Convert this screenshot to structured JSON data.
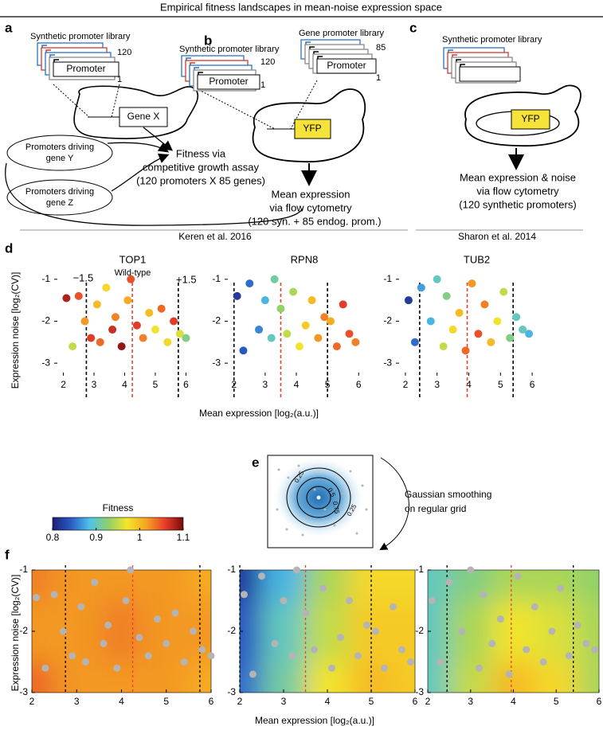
{
  "title": "Empirical fitness landscapes in mean-noise expression space",
  "panel_a": {
    "label": "a",
    "library": "Synthetic promoter library",
    "count_top": "120",
    "count_bottom": "1",
    "promoter": "Promoter",
    "gene": "Gene X",
    "driving_y": [
      "Promoters driving",
      "gene Y"
    ],
    "driving_z": [
      "Promoters driving",
      "gene Z"
    ],
    "result": [
      "Fitness via",
      "competitive growth assay",
      "(120 promoters X 85 genes)"
    ]
  },
  "panel_b": {
    "label": "b",
    "library": "Synthetic promoter library",
    "count_top": "120",
    "count_bottom": "1",
    "gene_library": "Gene promoter library",
    "gene_count_top": "85",
    "gene_count_bottom": "1",
    "promoter": "Promoter",
    "reporter": "YFP",
    "result": [
      "Mean expression",
      "via flow cytometry",
      "(120 syn. + 85 endog. prom.)"
    ]
  },
  "panel_c": {
    "label": "c",
    "library": "Synthetic promoter library",
    "reporter": "YFP",
    "result": [
      "Mean expression & noise",
      "via flow cytometry",
      "(120 synthetic promoters)"
    ]
  },
  "citations": [
    "Keren et al. 2016",
    "Sharon et al. 2014"
  ],
  "panel_d": {
    "label": "d",
    "y_label": "Expression noise [log₂(CV)]",
    "x_label": "Mean expression [log₂(a.u.)]",
    "xlim": [
      1.7,
      6.3
    ],
    "ylim": [
      -3.3,
      -0.7
    ],
    "xticks": [
      2,
      3,
      4,
      5,
      6
    ],
    "yticks": [
      -1,
      -2,
      -3
    ],
    "plots": [
      {
        "title": "TOP1",
        "subtitle": "Wild-type",
        "left_label": "−1.5",
        "right_label": "+1.5",
        "lines": [
          {
            "x": 2.75,
            "color": "#000000"
          },
          {
            "x": 4.25,
            "color": "#e8402a"
          },
          {
            "x": 5.75,
            "color": "#000000"
          }
        ],
        "points": {
          "x": [
            2.1,
            2.3,
            2.5,
            2.7,
            2.9,
            3.1,
            3.2,
            3.4,
            3.6,
            3.7,
            3.9,
            4.1,
            4.2,
            4.4,
            4.6,
            4.8,
            5.0,
            5.2,
            5.4,
            5.6,
            5.8,
            6.0
          ],
          "y": [
            -1.45,
            -2.6,
            -1.4,
            -2.0,
            -2.4,
            -1.6,
            -2.5,
            -1.2,
            -2.2,
            -1.9,
            -2.6,
            -1.5,
            -1.0,
            -2.1,
            -2.4,
            -1.8,
            -2.2,
            -1.7,
            -2.5,
            -2.0,
            -2.3,
            -2.4
          ],
          "fitness": [
            1.08,
            0.95,
            1.05,
            1.02,
            1.06,
            1.0,
            1.04,
            0.98,
            1.07,
            1.03,
            1.09,
            1.01,
            1.05,
            1.06,
            1.03,
            1.0,
            0.97,
            1.04,
            0.98,
            1.06,
            0.96,
            0.92
          ]
        }
      },
      {
        "title": "RPN8",
        "lines": [
          {
            "x": 2,
            "color": "#000000"
          },
          {
            "x": 3.5,
            "color": "#e8402a"
          },
          {
            "x": 5,
            "color": "#000000"
          }
        ],
        "points": {
          "x": [
            2.1,
            2.3,
            2.5,
            2.8,
            3.0,
            3.2,
            3.3,
            3.5,
            3.7,
            3.9,
            4.1,
            4.3,
            4.5,
            4.7,
            4.9,
            5.1,
            5.3,
            5.5,
            5.7,
            5.9
          ],
          "y": [
            -1.4,
            -2.7,
            -1.1,
            -2.2,
            -1.5,
            -2.4,
            -1.0,
            -1.7,
            -2.3,
            -1.3,
            -2.6,
            -2.1,
            -1.5,
            -2.4,
            -1.9,
            -2.0,
            -2.6,
            -1.6,
            -2.3,
            -2.5
          ],
          "fitness": [
            0.82,
            0.84,
            0.85,
            0.86,
            0.88,
            0.9,
            0.91,
            0.93,
            0.95,
            0.94,
            0.97,
            0.99,
            1.0,
            1.02,
            1.03,
            1.01,
            1.04,
            1.06,
            1.05,
            1.03
          ]
        }
      },
      {
        "title": "TUB2",
        "lines": [
          {
            "x": 2.45,
            "color": "#000000"
          },
          {
            "x": 3.95,
            "color": "#e8402a"
          },
          {
            "x": 5.4,
            "color": "#000000"
          }
        ],
        "points": {
          "x": [
            2.1,
            2.3,
            2.5,
            2.8,
            3.0,
            3.2,
            3.3,
            3.5,
            3.7,
            3.9,
            4.1,
            4.3,
            4.5,
            4.7,
            4.9,
            5.1,
            5.3,
            5.5,
            5.7,
            5.9
          ],
          "y": [
            -1.5,
            -2.5,
            -1.2,
            -2.0,
            -1.0,
            -2.6,
            -1.4,
            -2.2,
            -1.8,
            -2.7,
            -1.1,
            -2.3,
            -1.6,
            -2.5,
            -2.0,
            -1.3,
            -2.4,
            -1.9,
            -2.2,
            -2.3
          ],
          "fitness": [
            0.82,
            0.85,
            0.87,
            0.88,
            0.9,
            0.95,
            0.92,
            0.98,
            1.0,
            1.04,
            1.02,
            1.05,
            1.03,
            1.0,
            0.97,
            0.95,
            0.92,
            0.9,
            0.9,
            0.88
          ]
        }
      }
    ]
  },
  "colorbar": {
    "label": "Fitness",
    "clim": [
      0.8,
      1.1
    ],
    "ticks": [
      0.8,
      0.9,
      1,
      1.1
    ],
    "colors": [
      "#1e1e78",
      "#2a5cc4",
      "#4fc3e8",
      "#8fd16a",
      "#f5e52a",
      "#f5a623",
      "#e8402a",
      "#7a0a0a"
    ]
  },
  "panel_e": {
    "label": "e",
    "contour_labels": [
      "0.25",
      "0.5",
      "0.75",
      "0.25"
    ],
    "caption": [
      "Gaussian smoothing",
      "on regular grid"
    ]
  },
  "panel_f": {
    "label": "f",
    "y_label": "Expression noise [log₂(CV)]",
    "x_label": "Mean expression [log₂(a.u.)]",
    "xlim": [
      2,
      6
    ],
    "ylim": [
      -3,
      -1
    ],
    "xticks": [
      2,
      3,
      4,
      5,
      6
    ],
    "yticks": [
      -1,
      -2,
      -3
    ],
    "grid_x": [
      2,
      3,
      4,
      5,
      6
    ],
    "grid_y": [
      -1,
      -2,
      -3
    ],
    "grids": [
      [
        [
          1.03,
          1.02,
          1.02,
          1.02,
          1.01
        ],
        [
          1.02,
          1.02,
          1.03,
          1.02,
          1.02
        ],
        [
          1.04,
          1.02,
          1.02,
          1.02,
          1.01
        ]
      ],
      [
        [
          0.82,
          0.88,
          0.94,
          0.98,
          0.98
        ],
        [
          0.84,
          0.9,
          0.95,
          0.99,
          0.99
        ],
        [
          0.85,
          0.91,
          0.97,
          1.0,
          0.99
        ]
      ],
      [
        [
          0.9,
          0.92,
          0.94,
          0.94,
          0.93
        ],
        [
          0.9,
          0.94,
          0.97,
          0.96,
          0.94
        ],
        [
          0.9,
          0.95,
          1.0,
          0.98,
          0.94
        ]
      ]
    ],
    "point_color": "#b4b4b4"
  }
}
